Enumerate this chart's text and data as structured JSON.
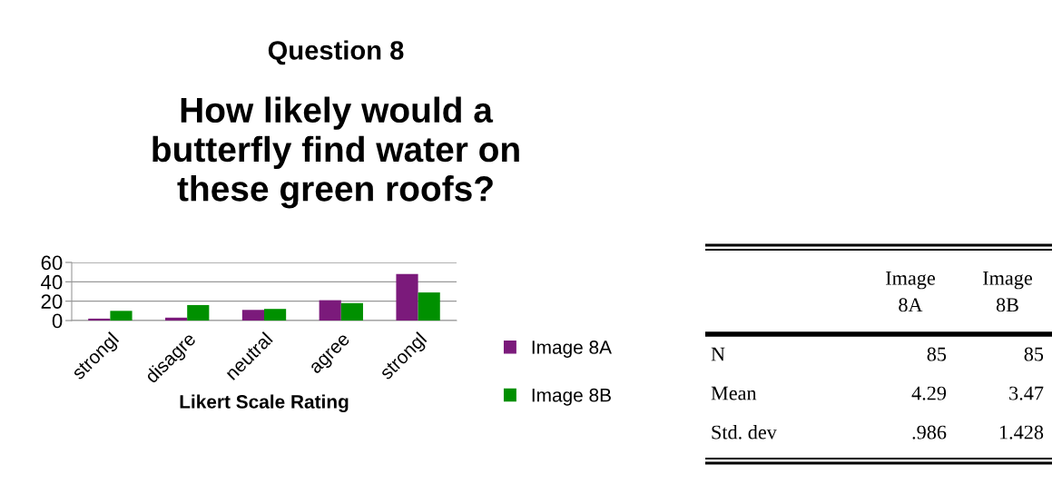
{
  "chart_data": [
    {
      "type": "bar",
      "title": "Question 8",
      "subtitle": "How likely would a\nbutterfly find water on\nthese green roofs?",
      "xlabel": "Likert Scale Rating",
      "categories": [
        "strongl",
        "disagre",
        "neutral",
        "agree",
        "strongl"
      ],
      "series": [
        {
          "name": "Image 8A",
          "color": "#7b1a7b",
          "values": [
            2,
            3,
            11,
            21,
            48
          ]
        },
        {
          "name": "Image 8B",
          "color": "#009000",
          "values": [
            10,
            16,
            12,
            18,
            29
          ]
        }
      ],
      "ylim": [
        0,
        60
      ],
      "yticks": [
        0,
        20,
        40,
        60
      ],
      "grid": "y",
      "legend": "right"
    },
    {
      "type": "other",
      "annotations": [
        "Image\n8A",
        "Image\n8B",
        "N",
        "85",
        "85",
        "Mean",
        "4.29",
        "3.47",
        "Std. dev",
        ".986",
        "1.428"
      ]
    }
  ]
}
